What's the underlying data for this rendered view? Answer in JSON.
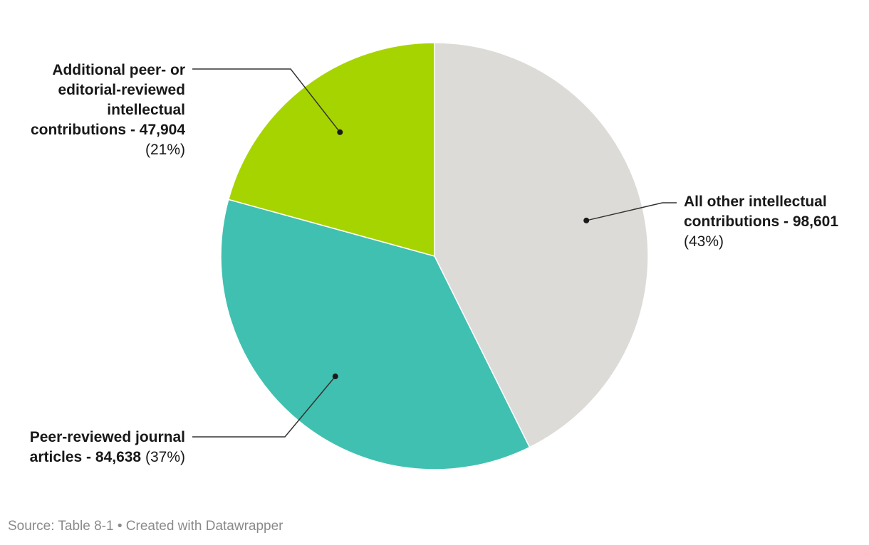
{
  "chart_data": {
    "type": "pie",
    "title": "",
    "categories": [
      "All other intellectual contributions",
      "Peer-reviewed journal articles",
      "Additional peer- or editorial-reviewed intellectual contributions"
    ],
    "values": [
      98601,
      84638,
      47904
    ],
    "slices": [
      {
        "name": "All other intellectual contributions",
        "value": 98601,
        "value_label": "98,601",
        "percent": "(43%)",
        "color": "#dcdbd7"
      },
      {
        "name": "Peer-reviewed journal articles",
        "value": 84638,
        "value_label": "84,638",
        "percent": "(37%)",
        "color": "#40c0b0"
      },
      {
        "name": "Additional peer- or editorial-reviewed intellectual contributions",
        "value": 47904,
        "value_label": "47,904",
        "percent": "(21%)",
        "color": "#a6d400"
      }
    ],
    "start_angle": "12 o'clock",
    "direction": "clockwise"
  },
  "labels": {
    "other_line1": "All other intellectual",
    "other_line2": "contributions - 98,601",
    "other_pct": "(43%)",
    "peer_line1": "Peer-reviewed journal",
    "peer_line2": "articles - 84,638",
    "peer_pct": "(37%)",
    "add_line1": "Additional peer- or",
    "add_line2": "editorial-reviewed",
    "add_line3": "intellectual",
    "add_line4": "contributions - 47,904",
    "add_pct": "(21%)"
  },
  "footer": {
    "text": "Source: Table 8-1 • Created with Datawrapper"
  },
  "colors": {
    "text": "#181818",
    "footer": "#8a8a8a",
    "leader": "#333333",
    "slice_border": "#ffffff"
  }
}
